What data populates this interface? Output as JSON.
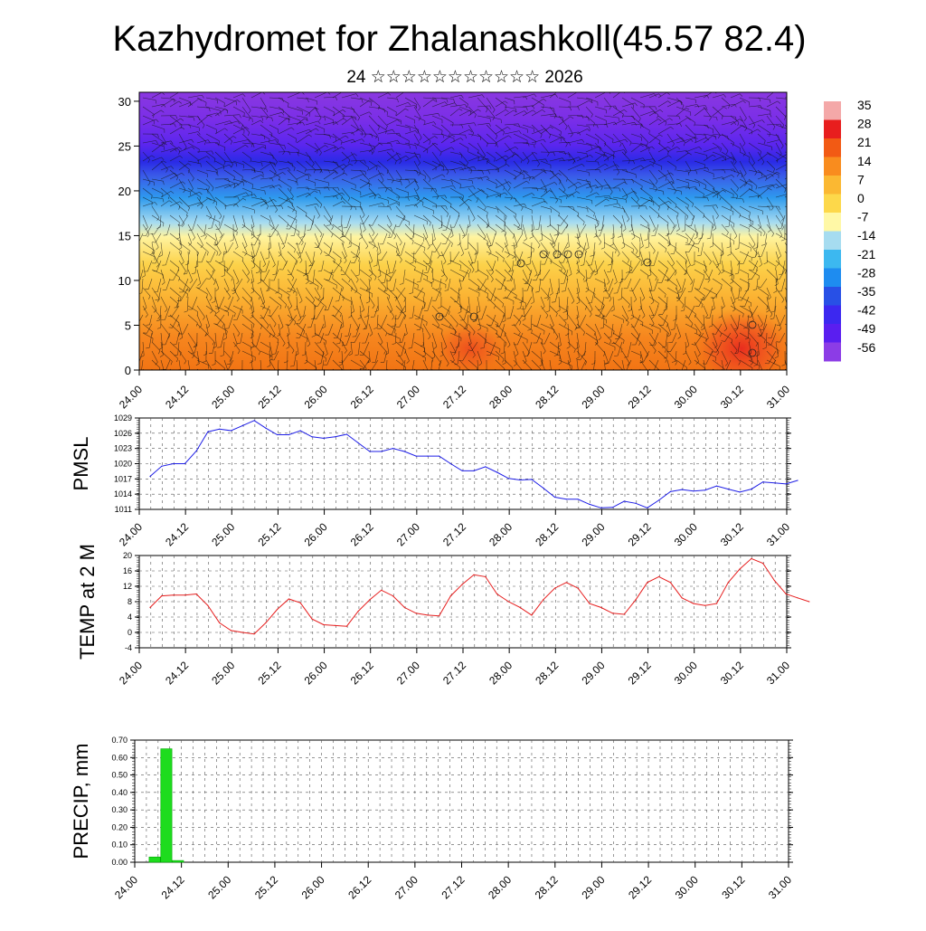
{
  "header": {
    "title": "Kazhydromet for Zhalanashkoll(45.57 82.4)",
    "subtitle": "24 ☆☆☆☆☆☆☆☆☆☆☆ 2026"
  },
  "chart_data": [
    {
      "type": "heatmap",
      "title": "Kazhydromet for Zhalanashkoll(45.57 82.4)",
      "subtitle": "24 ☆☆☆☆☆☆☆☆☆☆☆ 2026",
      "x_ticks": [
        "24.00",
        "24.12",
        "25.00",
        "25.12",
        "26.00",
        "26.12",
        "27.00",
        "27.12",
        "28.00",
        "28.12",
        "29.00",
        "29.12",
        "30.00",
        "30.12",
        "31.00"
      ],
      "y_ticks": [
        0,
        5,
        10,
        15,
        20,
        25,
        30
      ],
      "ylim": [
        0,
        31
      ],
      "colorbar_labels": [
        "35",
        "28",
        "21",
        "14",
        "7",
        "0",
        "-7",
        "-14",
        "-21",
        "-28",
        "-35",
        "-42",
        "-49",
        "-56"
      ],
      "colorbar_colors": [
        "#f4a8a8",
        "#e81e1e",
        "#f25a14",
        "#f98c1e",
        "#fbb832",
        "#fdd84a",
        "#fff8a6",
        "#a6dcf0",
        "#3cb8f0",
        "#1e8cf0",
        "#2850e6",
        "#3c28f0",
        "#5a1ef0",
        "#8c3ce6"
      ],
      "overlay": "wind barbs"
    },
    {
      "type": "line",
      "ylabel": "PMSL",
      "x_ticks": [
        "24.00",
        "24.12",
        "25.00",
        "25.12",
        "26.00",
        "26.12",
        "27.00",
        "27.12",
        "28.00",
        "28.12",
        "29.00",
        "29.12",
        "30.00",
        "30.12",
        "31.00"
      ],
      "y_ticks": [
        1011,
        1014,
        1017,
        1020,
        1023,
        1026,
        1029
      ],
      "ylim": [
        1011,
        1029
      ],
      "color": "#1e1ee6",
      "values": [
        1017.5,
        1019.5,
        1020,
        1020,
        1022.5,
        1026.3,
        1026.8,
        1026.5,
        1027.5,
        1028.5,
        1027,
        1025.7,
        1025.7,
        1026.5,
        1025.3,
        1025,
        1025.3,
        1025.8,
        1024.1,
        1022.4,
        1022.4,
        1023,
        1022.4,
        1021.5,
        1021.5,
        1021.5,
        1020,
        1018.6,
        1018.6,
        1019.4,
        1018.3,
        1017.1,
        1016.8,
        1016.9,
        1015.2,
        1013.4,
        1013,
        1013,
        1012,
        1011.3,
        1011.4,
        1012.6,
        1012.2,
        1011.3,
        1012.8,
        1014.5,
        1014.9,
        1014.6,
        1014.8,
        1015.6,
        1015,
        1014.4,
        1015,
        1016.4,
        1016.2,
        1016,
        1016.7
      ]
    },
    {
      "type": "line",
      "ylabel": "TEMP at 2 M",
      "x_ticks": [
        "24.00",
        "24.12",
        "25.00",
        "25.12",
        "26.00",
        "26.12",
        "27.00",
        "27.12",
        "28.00",
        "28.12",
        "29.00",
        "29.12",
        "30.00",
        "30.12",
        "31.00"
      ],
      "y_ticks": [
        -4,
        0,
        4,
        8,
        12,
        16,
        20
      ],
      "ylim": [
        -4,
        20
      ],
      "color": "#e61e1e",
      "values": [
        6.5,
        9.5,
        9.7,
        9.7,
        10,
        7,
        2.5,
        0.5,
        0,
        -0.4,
        2.5,
        6,
        8.7,
        7.7,
        3.5,
        2,
        1.8,
        1.6,
        5.5,
        8.5,
        11,
        9.5,
        6.5,
        5,
        4.5,
        4.3,
        9.5,
        12.5,
        15,
        14.5,
        10,
        8,
        6.5,
        4.5,
        8.5,
        11.5,
        13,
        11.5,
        7.5,
        6.5,
        5,
        4.7,
        8.5,
        13,
        14.5,
        13,
        9,
        7.5,
        7,
        7.5,
        13,
        16.5,
        19.2,
        18,
        13.5,
        10,
        9,
        8
      ]
    },
    {
      "type": "bar",
      "ylabel": "PRECIP, mm",
      "x_ticks": [
        "24.00",
        "24.12",
        "25.00",
        "25.12",
        "26.00",
        "26.12",
        "27.00",
        "27.12",
        "28.00",
        "28.12",
        "29.00",
        "29.12",
        "30.00",
        "30.12",
        "31.00"
      ],
      "y_ticks": [
        "0.00",
        "0.10",
        "0.20",
        "0.30",
        "0.40",
        "0.50",
        "0.60",
        "0.70"
      ],
      "ylim": [
        0,
        0.7
      ],
      "color": "#1edc1e",
      "bar_hours": [
        0,
        3,
        6
      ],
      "values": [
        0.03,
        0.65,
        0.01
      ]
    }
  ]
}
